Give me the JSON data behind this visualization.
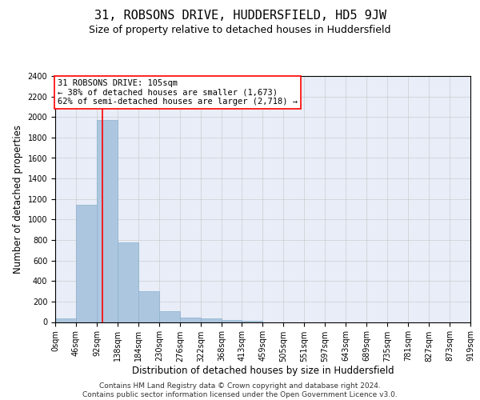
{
  "title": "31, ROBSONS DRIVE, HUDDERSFIELD, HD5 9JW",
  "subtitle": "Size of property relative to detached houses in Huddersfield",
  "xlabel": "Distribution of detached houses by size in Huddersfield",
  "ylabel": "Number of detached properties",
  "footer_line1": "Contains HM Land Registry data © Crown copyright and database right 2024.",
  "footer_line2": "Contains public sector information licensed under the Open Government Licence v3.0.",
  "bin_edges": [
    0,
    46,
    92,
    138,
    184,
    230,
    276,
    322,
    368,
    413,
    459,
    505,
    551,
    597,
    643,
    689,
    735,
    781,
    827,
    873,
    919
  ],
  "bar_heights": [
    35,
    1140,
    1970,
    775,
    300,
    105,
    45,
    35,
    20,
    10,
    0,
    0,
    0,
    0,
    0,
    0,
    0,
    0,
    0,
    0
  ],
  "bar_color": "#adc6e0",
  "bar_edgecolor": "#8ab0cc",
  "grid_color": "#cccccc",
  "background_color": "#e8edf8",
  "vline_x": 105,
  "vline_color": "red",
  "annotation_line1": "31 ROBSONS DRIVE: 105sqm",
  "annotation_line2": "← 38% of detached houses are smaller (1,673)",
  "annotation_line3": "62% of semi-detached houses are larger (2,718) →",
  "annotation_box_color": "white",
  "annotation_border_color": "red",
  "ylim": [
    0,
    2400
  ],
  "xlim": [
    0,
    919
  ],
  "ytick_step": 200,
  "title_fontsize": 11,
  "subtitle_fontsize": 9,
  "axis_label_fontsize": 8.5,
  "tick_fontsize": 7,
  "annotation_fontsize": 7.5,
  "footer_fontsize": 6.5
}
